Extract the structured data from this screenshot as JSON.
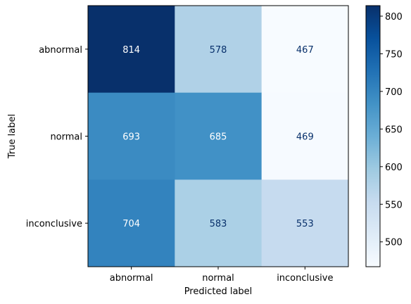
{
  "chart_data": {
    "type": "heatmap",
    "title": "",
    "xlabel": "Predicted label",
    "ylabel": "True label",
    "x_categories": [
      "abnormal",
      "normal",
      "inconclusive"
    ],
    "y_categories": [
      "abnormal",
      "normal",
      "inconclusive"
    ],
    "values": [
      [
        814,
        578,
        467
      ],
      [
        693,
        685,
        469
      ],
      [
        704,
        583,
        553
      ]
    ],
    "colormap": "Blues",
    "colorbar": {
      "range": [
        467,
        814
      ],
      "ticks": [
        500,
        550,
        600,
        650,
        700,
        750,
        800
      ]
    },
    "grid": false
  }
}
